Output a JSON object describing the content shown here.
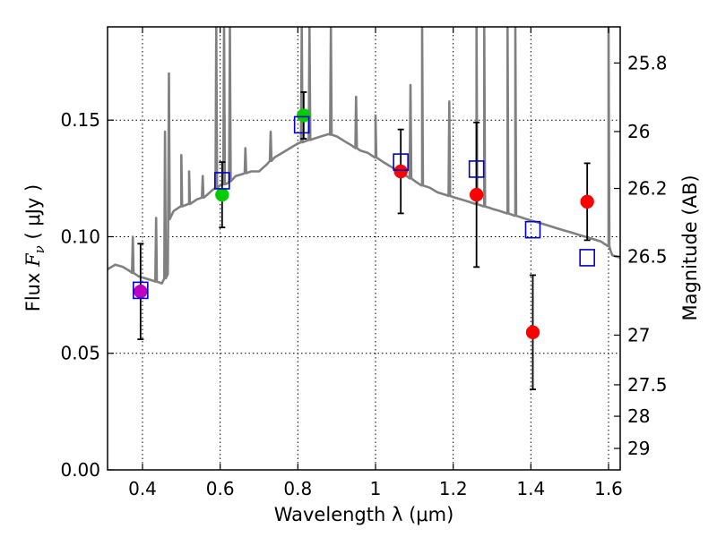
{
  "chart_data": {
    "type": "scatter",
    "xlabel": "Wavelength  λ (μm)",
    "ylabel": "Flux  F_ν  ( μJy )",
    "ylabel_parts": [
      "Flux",
      "F",
      "ν",
      "(",
      "μJy",
      ")"
    ],
    "y2label": "Magnitude (AB)",
    "xlim": [
      0.31,
      1.63
    ],
    "ylim": [
      0.0,
      0.19
    ],
    "grid": true,
    "x_ticks": [
      0.4,
      0.6,
      0.8,
      1.0,
      1.2,
      1.4,
      1.6
    ],
    "x_tick_labels": [
      "0.4",
      "0.6",
      "0.8",
      "1",
      "1.2",
      "1.4",
      "1.6"
    ],
    "y_ticks": [
      0.0,
      0.05,
      0.1,
      0.15
    ],
    "y_tick_labels": [
      "0.00",
      "0.05",
      "0.10",
      "0.15"
    ],
    "y2_ticks": [
      {
        "label": "25.8",
        "flux": 0.1745
      },
      {
        "label": "26",
        "flux": 0.1451
      },
      {
        "label": "26.2",
        "flux": 0.1207
      },
      {
        "label": "26.5",
        "flux": 0.0916
      },
      {
        "label": "27",
        "flux": 0.0578
      },
      {
        "label": "27.5",
        "flux": 0.0365
      },
      {
        "label": "28",
        "flux": 0.023
      },
      {
        "label": "29",
        "flux": 0.0092
      }
    ],
    "template_spectrum": {
      "name": "model SED",
      "color": "#808080",
      "continuum": [
        [
          0.31,
          0.086
        ],
        [
          0.33,
          0.088
        ],
        [
          0.35,
          0.087
        ],
        [
          0.37,
          0.085
        ],
        [
          0.39,
          0.083
        ],
        [
          0.41,
          0.082
        ],
        [
          0.43,
          0.081
        ],
        [
          0.45,
          0.08
        ],
        [
          0.465,
          0.084
        ],
        [
          0.466,
          0.105
        ],
        [
          0.47,
          0.11
        ],
        [
          0.48,
          0.111
        ],
        [
          0.5,
          0.113
        ],
        [
          0.52,
          0.114
        ],
        [
          0.54,
          0.116
        ],
        [
          0.56,
          0.117
        ],
        [
          0.58,
          0.12
        ],
        [
          0.6,
          0.122
        ],
        [
          0.62,
          0.123
        ],
        [
          0.64,
          0.126
        ],
        [
          0.66,
          0.127
        ],
        [
          0.68,
          0.128
        ],
        [
          0.7,
          0.128
        ],
        [
          0.72,
          0.131
        ],
        [
          0.74,
          0.134
        ],
        [
          0.76,
          0.136
        ],
        [
          0.78,
          0.138
        ],
        [
          0.8,
          0.14
        ],
        [
          0.82,
          0.141
        ],
        [
          0.84,
          0.142
        ],
        [
          0.86,
          0.143
        ],
        [
          0.88,
          0.144
        ],
        [
          0.9,
          0.143
        ],
        [
          0.92,
          0.141
        ],
        [
          0.94,
          0.139
        ],
        [
          0.96,
          0.137
        ],
        [
          0.98,
          0.136
        ],
        [
          1.0,
          0.134
        ],
        [
          1.02,
          0.132
        ],
        [
          1.04,
          0.13
        ],
        [
          1.06,
          0.128
        ],
        [
          1.08,
          0.126
        ],
        [
          1.1,
          0.124
        ],
        [
          1.12,
          0.122
        ],
        [
          1.14,
          0.121
        ],
        [
          1.16,
          0.119
        ],
        [
          1.18,
          0.118
        ],
        [
          1.2,
          0.117
        ],
        [
          1.22,
          0.116
        ],
        [
          1.24,
          0.115
        ],
        [
          1.26,
          0.114
        ],
        [
          1.28,
          0.113
        ],
        [
          1.3,
          0.112
        ],
        [
          1.32,
          0.111
        ],
        [
          1.34,
          0.11
        ],
        [
          1.36,
          0.109
        ],
        [
          1.38,
          0.108
        ],
        [
          1.4,
          0.107
        ],
        [
          1.42,
          0.106
        ],
        [
          1.44,
          0.105
        ],
        [
          1.46,
          0.104
        ],
        [
          1.48,
          0.103
        ],
        [
          1.5,
          0.102
        ],
        [
          1.52,
          0.101
        ],
        [
          1.54,
          0.1
        ],
        [
          1.56,
          0.099
        ],
        [
          1.58,
          0.098
        ],
        [
          1.6,
          0.096
        ],
        [
          1.605,
          0.094
        ],
        [
          1.61,
          0.092
        ],
        [
          1.63,
          0.091
        ]
      ],
      "emission_lines": [
        [
          0.375,
          0.1
        ],
        [
          0.435,
          0.108
        ],
        [
          0.458,
          0.145
        ],
        [
          0.468,
          0.17
        ],
        [
          0.5,
          0.135
        ],
        [
          0.52,
          0.128
        ],
        [
          0.555,
          0.126
        ],
        [
          0.59,
          0.19
        ],
        [
          0.61,
          0.19
        ],
        [
          0.625,
          0.19
        ],
        [
          0.665,
          0.138
        ],
        [
          0.73,
          0.145
        ],
        [
          0.81,
          0.19
        ],
        [
          0.83,
          0.19
        ],
        [
          0.885,
          0.19
        ],
        [
          0.95,
          0.16
        ],
        [
          1.0,
          0.152
        ],
        [
          1.09,
          0.165
        ],
        [
          1.12,
          0.19
        ],
        [
          1.19,
          0.158
        ],
        [
          1.26,
          0.19
        ],
        [
          1.28,
          0.19
        ],
        [
          1.34,
          0.19
        ],
        [
          1.36,
          0.19
        ],
        [
          1.6,
          0.19
        ]
      ]
    },
    "series": [
      {
        "name": "red-photometry",
        "marker": "circle",
        "color": "#ff0000",
        "points": [
          {
            "x": 1.065,
            "y": 0.128,
            "err": 0.018
          },
          {
            "x": 1.26,
            "y": 0.118,
            "err": 0.031
          },
          {
            "x": 1.405,
            "y": 0.059,
            "err": 0.0245
          },
          {
            "x": 1.545,
            "y": 0.115,
            "err": 0.0165
          }
        ]
      },
      {
        "name": "green-photometry",
        "marker": "circle",
        "color": "#00cc00",
        "points": [
          {
            "x": 0.605,
            "y": 0.118,
            "err": 0.014
          },
          {
            "x": 0.815,
            "y": 0.152,
            "err": 0.01
          }
        ]
      },
      {
        "name": "magenta-photometry",
        "marker": "circle",
        "color": "#bf00bf",
        "points": [
          {
            "x": 0.395,
            "y": 0.0765,
            "err": 0.0205
          }
        ]
      },
      {
        "name": "model-bandpass-flux",
        "marker": "open-square",
        "color": "#0000cc",
        "points": [
          {
            "x": 0.395,
            "y": 0.077
          },
          {
            "x": 0.605,
            "y": 0.124
          },
          {
            "x": 0.81,
            "y": 0.148
          },
          {
            "x": 1.065,
            "y": 0.132
          },
          {
            "x": 1.26,
            "y": 0.129
          },
          {
            "x": 1.405,
            "y": 0.103
          },
          {
            "x": 1.545,
            "y": 0.091
          }
        ]
      }
    ]
  }
}
